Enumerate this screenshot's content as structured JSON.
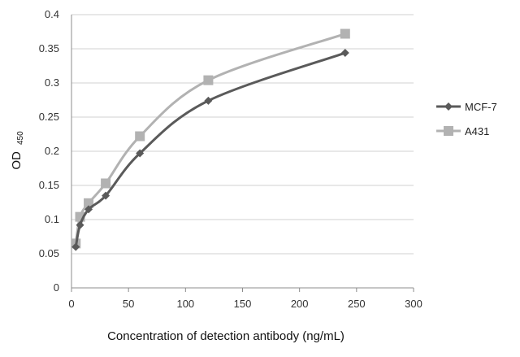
{
  "chart_data": {
    "type": "line",
    "xlabel": "Concentration of  detection antibody (ng/mL)",
    "ylabel": "OD",
    "ylabel_subscript": "450",
    "xlim": [
      0,
      300
    ],
    "ylim": [
      0,
      0.4
    ],
    "x_ticks": [
      "0",
      "50",
      "100",
      "150",
      "200",
      "250",
      "300"
    ],
    "y_ticks": [
      "0",
      "0.05",
      "0.1",
      "0.15",
      "0.2",
      "0.25",
      "0.3",
      "0.35",
      "0.4"
    ],
    "grid": "horizontal",
    "legend_position": "right",
    "series": [
      {
        "name": "MCF-7",
        "marker": "diamond",
        "color": "#5a5a5a",
        "points": [
          [
            3.75,
            0.06
          ],
          [
            7.5,
            0.092
          ],
          [
            15,
            0.115
          ],
          [
            30,
            0.135
          ],
          [
            60,
            0.197
          ],
          [
            120,
            0.274
          ],
          [
            240,
            0.344
          ]
        ]
      },
      {
        "name": "A431",
        "marker": "square",
        "color": "#b2b2b2",
        "points": [
          [
            3.75,
            0.065
          ],
          [
            7.5,
            0.104
          ],
          [
            15,
            0.124
          ],
          [
            30,
            0.153
          ],
          [
            60,
            0.222
          ],
          [
            120,
            0.304
          ],
          [
            240,
            0.372
          ]
        ]
      }
    ]
  }
}
